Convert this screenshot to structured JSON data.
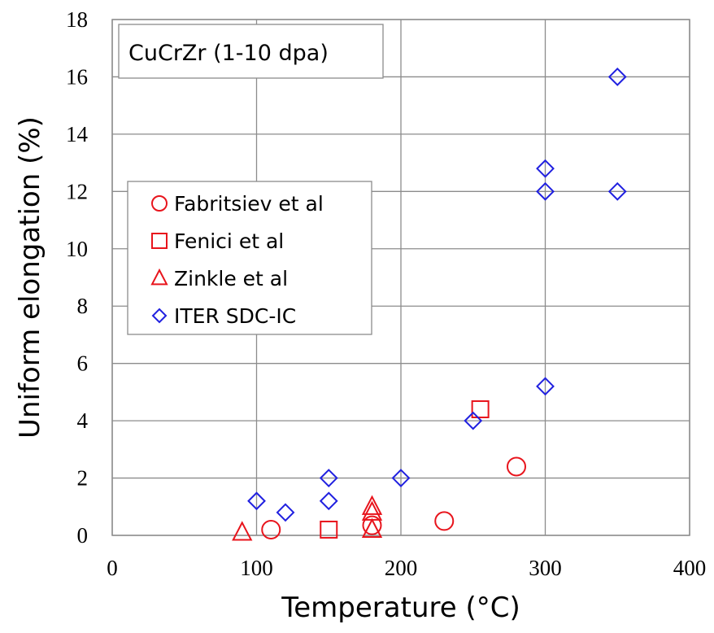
{
  "chart_data": {
    "type": "scatter",
    "annotation": "CuCrZr (1-10 dpa)",
    "xlabel": "Temperature (°C)",
    "ylabel": "Uniform elongation (%)",
    "xlim": [
      0,
      400
    ],
    "ylim": [
      0,
      18
    ],
    "xticks": [
      0,
      100,
      200,
      300,
      400
    ],
    "yticks": [
      0,
      2,
      4,
      6,
      8,
      10,
      12,
      14,
      16,
      18
    ],
    "grid": true,
    "legend_position": "center-left",
    "series": [
      {
        "name": "Fabritsiev et al",
        "marker": "circle",
        "color": "#e8141c",
        "x": [
          110,
          180,
          230,
          280
        ],
        "y": [
          0.2,
          0.35,
          0.5,
          2.4
        ]
      },
      {
        "name": "Fenici et al",
        "marker": "square",
        "color": "#e8141c",
        "x": [
          150,
          255
        ],
        "y": [
          0.2,
          4.4
        ]
      },
      {
        "name": "Zinkle et al",
        "marker": "triangle",
        "color": "#e8141c",
        "x": [
          90,
          180,
          180,
          180
        ],
        "y": [
          0.1,
          0.2,
          0.8,
          1.0
        ]
      },
      {
        "name": "ITER SDC-IC",
        "marker": "diamond",
        "color": "#2020e0",
        "x": [
          100,
          120,
          150,
          150,
          200,
          250,
          300,
          300,
          300,
          350,
          350
        ],
        "y": [
          1.2,
          0.8,
          2.0,
          1.2,
          2.0,
          4.0,
          5.2,
          12.0,
          12.8,
          12.0,
          16.0
        ]
      }
    ]
  }
}
